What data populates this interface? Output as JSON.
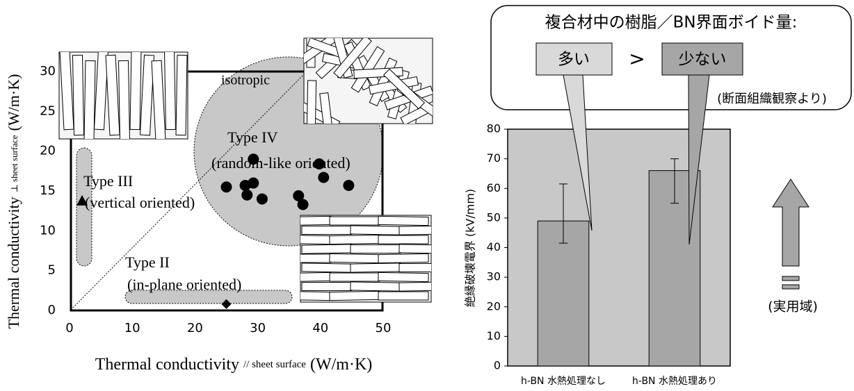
{
  "chart_data": [
    {
      "type": "scatter",
      "x_label": "Thermal conductivity",
      "x_label_sub": "// sheet surface",
      "x_label_unit": "(W/m·K)",
      "y_label": "Thermal conductivity",
      "y_label_sub": "⊥ sheet surface",
      "y_label_unit": "(W/m·K)",
      "annotations": [
        "isotropic",
        "Type IV",
        "(random-like oriented)",
        "Type III",
        "(vertical oriented)",
        "Type II",
        "(in-plane oriented)"
      ],
      "xlim": [
        0,
        50
      ],
      "xticks": [
        0,
        10,
        20,
        30,
        40,
        50
      ],
      "ylim": [
        0,
        30
      ],
      "yticks": [
        0,
        5,
        10,
        15,
        20,
        25,
        30
      ],
      "series": [
        {
          "marker": "circle",
          "color": "#000000",
          "x": [
            25,
            28,
            28.3,
            29.3,
            29.3,
            30.7,
            36.5,
            37.2,
            39.8,
            40.5,
            44.5
          ],
          "y": [
            15.5,
            15.7,
            14.5,
            19,
            16,
            14,
            14.4,
            13.3,
            18.4,
            16.7,
            15.7
          ]
        },
        {
          "marker": "triangle",
          "color": "#000000",
          "x": [
            2
          ],
          "y": [
            13.7
          ]
        },
        {
          "marker": "diamond",
          "color": "#000000",
          "x": [
            25
          ],
          "y": [
            0.8
          ]
        }
      ]
    },
    {
      "type": "bar",
      "y_label": "絶縁破壊電界 (kV/mm)",
      "categories": [
        "h-BN 水熱処理なし",
        "h-BN 水熱処理あり"
      ],
      "values": [
        49,
        66
      ],
      "err_minus": [
        7.5,
        11
      ],
      "err_plus": [
        12.5,
        4
      ],
      "color": "#a6a6a6",
      "background": "#c8c8c8",
      "ylim": [
        0,
        80
      ],
      "yticks": [
        0,
        10,
        20,
        30,
        40,
        50,
        60,
        70,
        80
      ],
      "callout_title": "複合材中の樹脂／BN界面ボイド量:",
      "callout_labels": [
        "多い",
        ">",
        "少ない"
      ],
      "callout_note": "(断面組織観察より)",
      "arrow_label": "(実用域)"
    }
  ]
}
